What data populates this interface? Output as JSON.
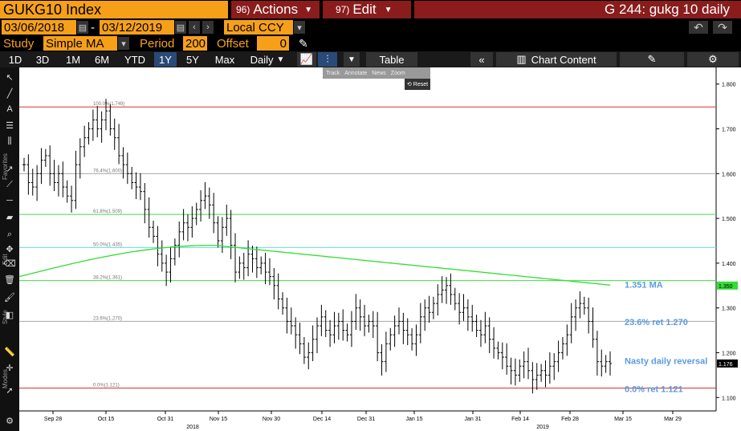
{
  "header": {
    "security": "GUKG10 Index",
    "actions_num": "96)",
    "actions_label": "Actions",
    "edit_num": "97)",
    "edit_label": "Edit",
    "title": "G 244: gukg 10 daily"
  },
  "range": {
    "start": "03/06/2018",
    "sep": "-",
    "end": "03/12/2019",
    "currency": "Local CCY"
  },
  "study": {
    "label": "Study",
    "value": "Simple MA",
    "period_label": "Period",
    "period_value": "200",
    "offset_label": "Offset",
    "offset_value": "0"
  },
  "toolbar": {
    "periods": [
      "1D",
      "3D",
      "1M",
      "6M",
      "YTD",
      "1Y",
      "5Y",
      "Max"
    ],
    "active_period": "1Y",
    "frequency": "Daily",
    "table_label": "Table",
    "chart_content_label": "Chart Content"
  },
  "overlay_tools": [
    "Track",
    "Annotate",
    "News",
    "Zoom"
  ],
  "reset_label": "Reset",
  "sidebar": {
    "favorites": "Favorites",
    "edit": "Edit",
    "style": "Style",
    "modes": "Modes"
  },
  "colors": {
    "orange": "#f6a01a",
    "darkred": "#8a1c1c",
    "ma": "#33dd33",
    "fib_red": "#e03030",
    "fib_green": "#44dd44",
    "fib_cyan": "#66dddd",
    "annot": "#5b9be0"
  },
  "chart_data": {
    "type": "bar",
    "yaxis": {
      "ticks": [
        "1.800",
        "1.700",
        "1.600",
        "1.500",
        "1.400",
        "1.300",
        "1.200",
        "1.100"
      ],
      "range": [
        1.07,
        1.83
      ]
    },
    "xaxis": {
      "ticks": [
        "Sep 28",
        "Oct 15",
        "Oct 31",
        "Nov 15",
        "Nov 30",
        "Dec 14",
        "Dec 31",
        "Jan 15",
        "Jan 31",
        "Feb 14",
        "Feb 28",
        "Mar 15",
        "Mar 29"
      ],
      "years": [
        "2018",
        "2019"
      ]
    },
    "fib_levels": [
      {
        "label": "100.0%(1.749)",
        "value": 1.749,
        "color": "red"
      },
      {
        "label": "76.4%(1.600)",
        "value": 1.6,
        "color": "gray"
      },
      {
        "label": "61.8%(1.509)",
        "value": 1.509,
        "color": "green"
      },
      {
        "label": "50.0%(1.435)",
        "value": 1.435,
        "color": "cyan"
      },
      {
        "label": "38.2%(1.361)",
        "value": 1.361,
        "color": "green"
      },
      {
        "label": "23.6%(1.270)",
        "value": 1.27,
        "color": "gray"
      },
      {
        "label": "0.0%(1.121)",
        "value": 1.121,
        "color": "red"
      }
    ],
    "last_price": "1.176",
    "ma_value_tag": "1.350",
    "annotations": [
      "1.351 MA",
      "23.6% ret 1.270",
      "Nasty daily reversal",
      "0.0% ret 1.121"
    ],
    "closes": [
      1.62,
      1.58,
      1.57,
      1.6,
      1.63,
      1.64,
      1.6,
      1.58,
      1.6,
      1.57,
      1.55,
      1.54,
      1.62,
      1.66,
      1.68,
      1.7,
      1.72,
      1.7,
      1.72,
      1.74,
      1.7,
      1.68,
      1.64,
      1.62,
      1.6,
      1.58,
      1.57,
      1.56,
      1.52,
      1.48,
      1.46,
      1.42,
      1.4,
      1.38,
      1.41,
      1.44,
      1.47,
      1.49,
      1.48,
      1.5,
      1.52,
      1.54,
      1.55,
      1.53,
      1.49,
      1.45,
      1.48,
      1.5,
      1.44,
      1.38,
      1.4,
      1.39,
      1.42,
      1.41,
      1.39,
      1.4,
      1.38,
      1.37,
      1.35,
      1.32,
      1.3,
      1.27,
      1.26,
      1.24,
      1.22,
      1.19,
      1.2,
      1.23,
      1.26,
      1.28,
      1.25,
      1.24,
      1.26,
      1.27,
      1.25,
      1.24,
      1.27,
      1.3,
      1.28,
      1.26,
      1.27,
      1.26,
      1.2,
      1.18,
      1.22,
      1.24,
      1.26,
      1.27,
      1.25,
      1.24,
      1.22,
      1.24,
      1.28,
      1.3,
      1.29,
      1.31,
      1.33,
      1.34,
      1.35,
      1.33,
      1.31,
      1.29,
      1.3,
      1.28,
      1.27,
      1.25,
      1.24,
      1.26,
      1.23,
      1.21,
      1.2,
      1.19,
      1.17,
      1.16,
      1.15,
      1.17,
      1.18,
      1.16,
      1.14,
      1.15,
      1.16,
      1.15,
      1.17,
      1.18,
      1.2,
      1.22,
      1.24,
      1.28,
      1.3,
      1.31,
      1.3,
      1.27,
      1.23,
      1.18,
      1.17,
      1.18,
      1.176
    ]
  }
}
